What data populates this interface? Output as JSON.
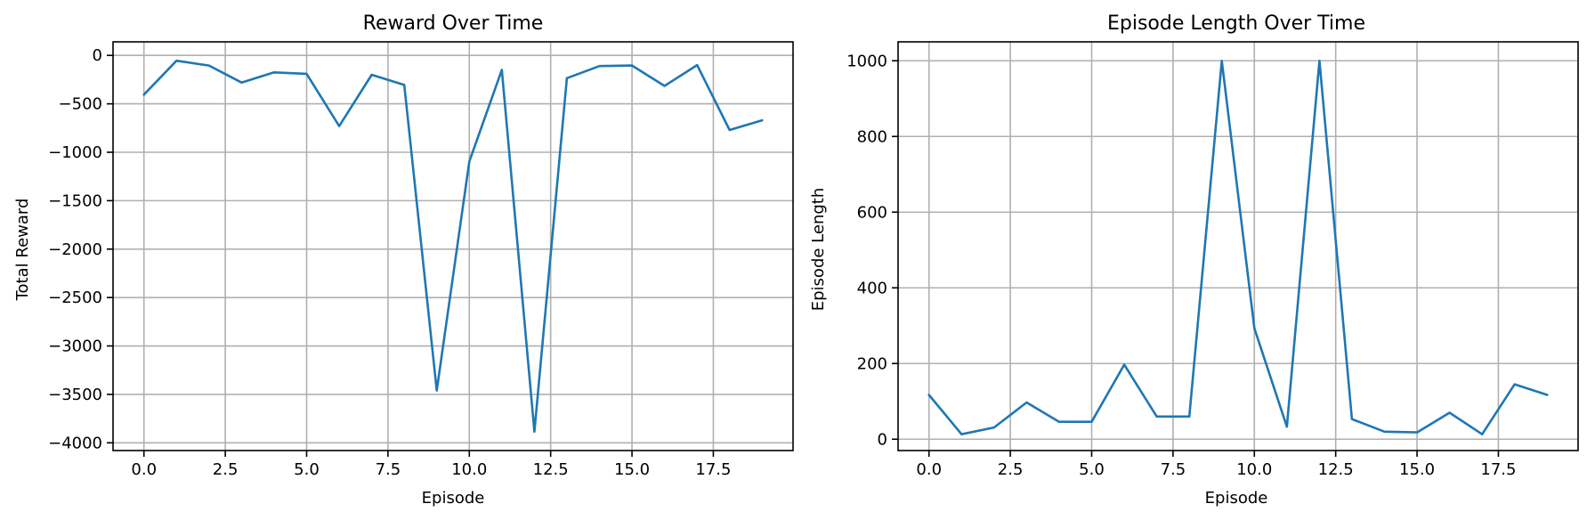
{
  "colors": {
    "series": "#1f77b4",
    "grid": "#b0b0b0"
  },
  "chart_data": [
    {
      "type": "line",
      "title": "Reward Over Time",
      "xlabel": "Episode",
      "ylabel": "Total Reward",
      "grid": true,
      "xlim": [
        -0.95,
        19.95
      ],
      "ylim": [
        -4080,
        140
      ],
      "xticks": [
        0.0,
        2.5,
        5.0,
        7.5,
        10.0,
        12.5,
        15.0,
        17.5
      ],
      "xtick_labels": [
        "0.0",
        "2.5",
        "5.0",
        "7.5",
        "10.0",
        "12.5",
        "15.0",
        "17.5"
      ],
      "yticks": [
        0,
        -500,
        -1000,
        -1500,
        -2000,
        -2500,
        -3000,
        -3500,
        -4000
      ],
      "ytick_labels": [
        "0",
        "−500",
        "−1000",
        "−1500",
        "−2000",
        "−2500",
        "−3000",
        "−3500",
        "−4000"
      ],
      "x": [
        0,
        1,
        2,
        3,
        4,
        5,
        6,
        7,
        8,
        9,
        10,
        11,
        12,
        13,
        14,
        15,
        16,
        17,
        18,
        19
      ],
      "y": [
        -405,
        -55,
        -105,
        -280,
        -175,
        -190,
        -730,
        -200,
        -305,
        -3460,
        -1095,
        -150,
        -3885,
        -235,
        -110,
        -105,
        -315,
        -100,
        -770,
        -670
      ]
    },
    {
      "type": "line",
      "title": "Episode Length Over Time",
      "xlabel": "Episode",
      "ylabel": "Episode Length",
      "grid": true,
      "xlim": [
        -0.95,
        19.95
      ],
      "ylim": [
        -30,
        1050
      ],
      "xticks": [
        0.0,
        2.5,
        5.0,
        7.5,
        10.0,
        12.5,
        15.0,
        17.5
      ],
      "xtick_labels": [
        "0.0",
        "2.5",
        "5.0",
        "7.5",
        "10.0",
        "12.5",
        "15.0",
        "17.5"
      ],
      "yticks": [
        0,
        200,
        400,
        600,
        800,
        1000
      ],
      "ytick_labels": [
        "0",
        "200",
        "400",
        "600",
        "800",
        "1000"
      ],
      "x": [
        0,
        1,
        2,
        3,
        4,
        5,
        6,
        7,
        8,
        9,
        10,
        11,
        12,
        13,
        14,
        15,
        16,
        17,
        18,
        19
      ],
      "y": [
        117,
        13,
        31,
        97,
        46,
        46,
        197,
        60,
        60,
        1000,
        293,
        33,
        1000,
        53,
        20,
        18,
        70,
        13,
        145,
        117
      ]
    }
  ]
}
